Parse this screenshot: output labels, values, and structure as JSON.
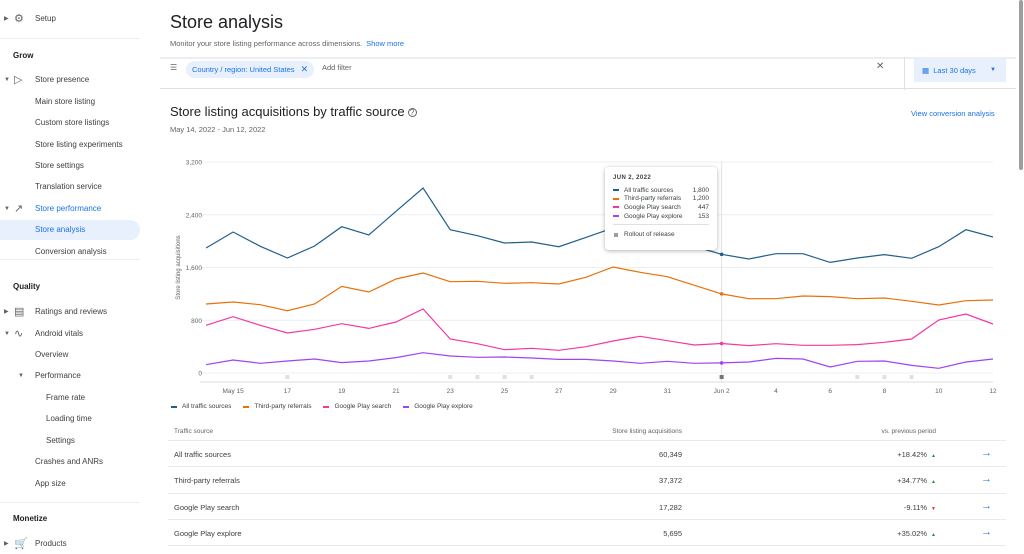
{
  "sidebar": {
    "setup": "Setup",
    "grow": "Grow",
    "store_presence": "Store presence",
    "main_store_listing": "Main store listing",
    "custom_store_listings": "Custom store listings",
    "store_listing_experiments": "Store listing experiments",
    "store_settings": "Store settings",
    "translation_service": "Translation service",
    "store_performance": "Store performance",
    "store_analysis": "Store analysis",
    "conversion_analysis": "Conversion analysis",
    "quality": "Quality",
    "ratings_reviews": "Ratings and reviews",
    "android_vitals": "Android vitals",
    "overview": "Overview",
    "performance": "Performance",
    "frame_rate": "Frame rate",
    "loading_time": "Loading time",
    "settings": "Settings",
    "crashes": "Crashes and ANRs",
    "app_size": "App size",
    "monetize": "Monetize",
    "products": "Products"
  },
  "header": {
    "title": "Store analysis",
    "subtitle": "Monitor your store listing performance across dimensions.",
    "show_more": "Show more"
  },
  "filter": {
    "chip": "Country / region: United States",
    "add_filter": "Add filter",
    "date_range": "Last 30 days"
  },
  "section": {
    "title": "Store listing acquisitions by traffic source",
    "date_range": "May 14, 2022 - Jun 12, 2022",
    "view_conversion": "View conversion analysis"
  },
  "tooltip": {
    "date": "JUN 2, 2022",
    "rows": [
      {
        "name": "All traffic sources",
        "value": "1,800"
      },
      {
        "name": "Third-party referrals",
        "value": "1,200"
      },
      {
        "name": "Google Play search",
        "value": "447"
      },
      {
        "name": "Google Play explore",
        "value": "153"
      }
    ],
    "annotation": "Rollout of release"
  },
  "chart_data": {
    "type": "line",
    "ylabel": "Store listing acquisitions",
    "ylim": [
      0,
      3200
    ],
    "yticks": [
      "0",
      "800",
      "1,600",
      "2,400",
      "3,200"
    ],
    "ytick_values": [
      0,
      800,
      1600,
      2400,
      3200
    ],
    "x": [
      "2022-05-14",
      "2022-05-15",
      "2022-05-16",
      "2022-05-17",
      "2022-05-18",
      "2022-05-19",
      "2022-05-20",
      "2022-05-21",
      "2022-05-22",
      "2022-05-23",
      "2022-05-24",
      "2022-05-25",
      "2022-05-26",
      "2022-05-27",
      "2022-05-28",
      "2022-05-29",
      "2022-05-30",
      "2022-05-31",
      "2022-06-01",
      "2022-06-02",
      "2022-06-03",
      "2022-06-04",
      "2022-06-05",
      "2022-06-06",
      "2022-06-07",
      "2022-06-08",
      "2022-06-09",
      "2022-06-10",
      "2022-06-11",
      "2022-06-12"
    ],
    "xticks": [
      {
        "index": 1,
        "label": "May 15"
      },
      {
        "index": 3,
        "label": "17"
      },
      {
        "index": 5,
        "label": "19"
      },
      {
        "index": 7,
        "label": "21"
      },
      {
        "index": 9,
        "label": "23"
      },
      {
        "index": 11,
        "label": "25"
      },
      {
        "index": 13,
        "label": "27"
      },
      {
        "index": 15,
        "label": "29"
      },
      {
        "index": 17,
        "label": "31"
      },
      {
        "index": 19,
        "label": "Jun 2"
      },
      {
        "index": 21,
        "label": "4"
      },
      {
        "index": 23,
        "label": "6"
      },
      {
        "index": 25,
        "label": "8"
      },
      {
        "index": 27,
        "label": "10"
      },
      {
        "index": 29,
        "label": "12"
      }
    ],
    "series": [
      {
        "name": "All traffic sources",
        "color": "#1f5f8b",
        "values": [
          1896,
          2138,
          1921,
          1744,
          1926,
          2219,
          2093,
          2452,
          2805,
          2174,
          2083,
          1971,
          1987,
          1916,
          2057,
          2200,
          2280,
          2100,
          1920,
          1800,
          1729,
          1810,
          1810,
          1678,
          1744,
          1795,
          1739,
          1916,
          2174,
          2062
        ]
      },
      {
        "name": "Third-party referrals",
        "color": "#e8710a",
        "values": [
          1046,
          1077,
          1036,
          945,
          1046,
          1314,
          1228,
          1425,
          1517,
          1385,
          1390,
          1360,
          1370,
          1350,
          1451,
          1607,
          1527,
          1461,
          1330,
          1200,
          1127,
          1127,
          1168,
          1158,
          1127,
          1137,
          1087,
          1031,
          1097,
          1107
        ]
      },
      {
        "name": "Google Play search",
        "color": "#f538a0",
        "values": [
          723,
          854,
          723,
          607,
          662,
          748,
          677,
          773,
          971,
          516,
          445,
          354,
          374,
          344,
          399,
          485,
          556,
          490,
          425,
          447,
          415,
          445,
          420,
          420,
          430,
          465,
          516,
          804,
          895,
          743
        ]
      },
      {
        "name": "Google Play explore",
        "color": "#a142f4",
        "values": [
          126,
          197,
          147,
          182,
          212,
          157,
          182,
          233,
          308,
          258,
          238,
          243,
          227,
          207,
          207,
          182,
          147,
          177,
          147,
          153,
          167,
          222,
          212,
          91,
          177,
          182,
          116,
          71,
          167,
          212
        ]
      }
    ],
    "annotations": {
      "label": "Rollout of release",
      "dates": [
        "2022-05-17",
        "2022-05-23",
        "2022-05-24",
        "2022-05-25",
        "2022-05-26",
        "2022-06-02",
        "2022-06-07",
        "2022-06-08",
        "2022-06-09"
      ],
      "selected": "2022-06-02"
    },
    "hover_date": "2022-06-02",
    "grid": true,
    "legend": "bottom-left"
  },
  "table": {
    "headers": [
      "Traffic source",
      "Store listing acquisitions",
      "vs. previous period"
    ],
    "rows": [
      {
        "source": "All traffic sources",
        "acq": "60,349",
        "change": "+18.42%",
        "dir": "up"
      },
      {
        "source": "Third-party referrals",
        "acq": "37,372",
        "change": "+34.77%",
        "dir": "up"
      },
      {
        "source": "Google Play search",
        "acq": "17,282",
        "change": "-9.11%",
        "dir": "down"
      },
      {
        "source": "Google Play explore",
        "acq": "5,695",
        "change": "+35.02%",
        "dir": "up"
      }
    ]
  }
}
